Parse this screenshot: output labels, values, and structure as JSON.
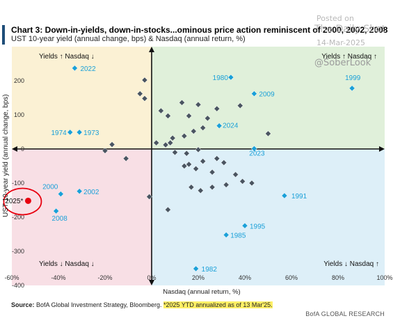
{
  "header": {
    "title": "Chart 3: Down-in-yields, down-in-stocks...ominous price action reminiscent of 2000, 2002, 2008",
    "subtitle": "UST 10-year yield (annual change, bps) & Nasdaq (annual return, %)"
  },
  "watermark": {
    "posted": "Posted on",
    "site": "The Daily Shot",
    "date": "14-Mar-2025",
    "handle": "@SoberLook"
  },
  "footer": {
    "source_label": "Source:",
    "source_text": "BofA Global Investment Strategy, Bloomberg. ",
    "note": "*2025 YTD annualized as of 13 Mar'25.",
    "brand": "BofA GLOBAL RESEARCH"
  },
  "chart_data": {
    "type": "scatter",
    "xlabel": "Nasdaq (annual return, %)",
    "ylabel": "UST 10-year yield (annual change, bps)",
    "xlim": [
      -60,
      100
    ],
    "ylim": [
      -400,
      300
    ],
    "xticks": [
      -60,
      -40,
      -20,
      0,
      20,
      40,
      60,
      80,
      100
    ],
    "xtick_labels": [
      "-60%",
      "-40%",
      "-20%",
      "0%",
      "20%",
      "40%",
      "60%",
      "80%",
      "100%"
    ],
    "yticks": [
      -400,
      -300,
      -200,
      -100,
      0,
      100,
      200
    ],
    "ytick_labels": [
      "-400",
      "-300",
      "-200",
      "-100",
      "0",
      "100",
      "200"
    ],
    "quadrants": {
      "top_left": {
        "label": "Yields ↑ Nasdaq ↓",
        "color": "#fbf1d4"
      },
      "top_right": {
        "label": "Yields ↑ Nasdaq ↑",
        "color": "#e0f0da"
      },
      "bottom_left": {
        "label": "Yields ↓ Nasdaq ↓",
        "color": "#f8dfe5"
      },
      "bottom_right": {
        "label": "Yields ↓ Nasdaq ↑",
        "color": "#ddeff8"
      }
    },
    "colors": {
      "labeled_point": "#1aa0d8",
      "unlabeled_point": "#4a5561",
      "highlight": "#e8000f",
      "axis": "#111111"
    },
    "labeled_points": [
      {
        "label": "2022",
        "x": -33,
        "y": 237
      },
      {
        "label": "1980",
        "x": 34,
        "y": 210
      },
      {
        "label": "1999",
        "x": 86,
        "y": 178
      },
      {
        "label": "2009",
        "x": 44,
        "y": 162
      },
      {
        "label": "2024",
        "x": 29,
        "y": 68
      },
      {
        "label": "1974",
        "x": -35,
        "y": 49
      },
      {
        "label": "1973",
        "x": -31,
        "y": 49
      },
      {
        "label": "2023",
        "x": 44,
        "y": 1
      },
      {
        "label": "2000",
        "x": -39,
        "y": -132
      },
      {
        "label": "2002",
        "x": -31,
        "y": -124
      },
      {
        "label": "1991",
        "x": 57,
        "y": -137
      },
      {
        "label": "2008",
        "x": -41,
        "y": -182
      },
      {
        "label": "1995",
        "x": 40,
        "y": -225
      },
      {
        "label": "1985",
        "x": 32,
        "y": -252
      },
      {
        "label": "1982",
        "x": 19,
        "y": -351
      }
    ],
    "highlight_point": {
      "label": "2025*",
      "x": -53,
      "y": -152
    },
    "unlabeled_points": [
      {
        "x": -3,
        "y": 202
      },
      {
        "x": -5,
        "y": 162
      },
      {
        "x": -3,
        "y": 148
      },
      {
        "x": 4,
        "y": 112
      },
      {
        "x": 13,
        "y": 136
      },
      {
        "x": 20,
        "y": 130
      },
      {
        "x": 28,
        "y": 118
      },
      {
        "x": 38,
        "y": 127
      },
      {
        "x": 7,
        "y": 97
      },
      {
        "x": 16,
        "y": 97
      },
      {
        "x": 24,
        "y": 90
      },
      {
        "x": 22,
        "y": 62
      },
      {
        "x": 18,
        "y": 52
      },
      {
        "x": 14,
        "y": 38
      },
      {
        "x": 9,
        "y": 32
      },
      {
        "x": 50,
        "y": 45
      },
      {
        "x": 8,
        "y": 18
      },
      {
        "x": 6,
        "y": 12
      },
      {
        "x": 2,
        "y": 18
      },
      {
        "x": -17,
        "y": 13
      },
      {
        "x": -20,
        "y": -5
      },
      {
        "x": 20,
        "y": -2
      },
      {
        "x": 10,
        "y": -10
      },
      {
        "x": 15,
        "y": -13
      },
      {
        "x": -11,
        "y": -28
      },
      {
        "x": 28,
        "y": -28
      },
      {
        "x": 22,
        "y": -36
      },
      {
        "x": 31,
        "y": -40
      },
      {
        "x": 16,
        "y": -45
      },
      {
        "x": 14,
        "y": -50
      },
      {
        "x": 19,
        "y": -58
      },
      {
        "x": 26,
        "y": -68
      },
      {
        "x": 36,
        "y": -75
      },
      {
        "x": 39,
        "y": -95
      },
      {
        "x": 43,
        "y": -100
      },
      {
        "x": 32,
        "y": -105
      },
      {
        "x": 21,
        "y": -122
      },
      {
        "x": 17,
        "y": -112
      },
      {
        "x": 26,
        "y": -112
      },
      {
        "x": -1,
        "y": -140
      },
      {
        "x": 7,
        "y": -178
      }
    ]
  }
}
